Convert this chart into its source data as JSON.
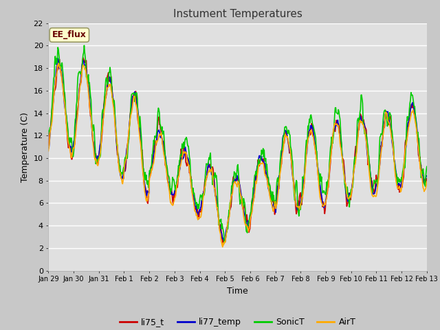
{
  "title": "Instument Temperatures",
  "xlabel": "Time",
  "ylabel": "Temperature (C)",
  "ylim": [
    0,
    22
  ],
  "yticks": [
    0,
    2,
    4,
    6,
    8,
    10,
    12,
    14,
    16,
    18,
    20,
    22
  ],
  "fig_bg_color": "#c8c8c8",
  "plot_bg_color": "#e0e0e0",
  "grid_color": "white",
  "series_colors": {
    "li75_t": "#cc0000",
    "li77_temp": "#0000cc",
    "SonicT": "#00cc00",
    "AirT": "#ffaa00"
  },
  "annotation_text": "EE_flux",
  "annotation_color": "#660000",
  "annotation_bg": "#ffffcc",
  "annotation_border": "#999966",
  "xtick_labels": [
    "Jan 29",
    "Jan 30",
    "Jan 31",
    "Feb 1",
    "Feb 2",
    "Feb 3",
    "Feb 4",
    "Feb 5",
    "Feb 6",
    "Feb 7",
    "Feb 8",
    "Feb 9",
    "Feb 10",
    "Feb 11",
    "Feb 12",
    "Feb 13"
  ],
  "line_width": 1.2,
  "figsize": [
    6.4,
    4.8
  ],
  "dpi": 100
}
